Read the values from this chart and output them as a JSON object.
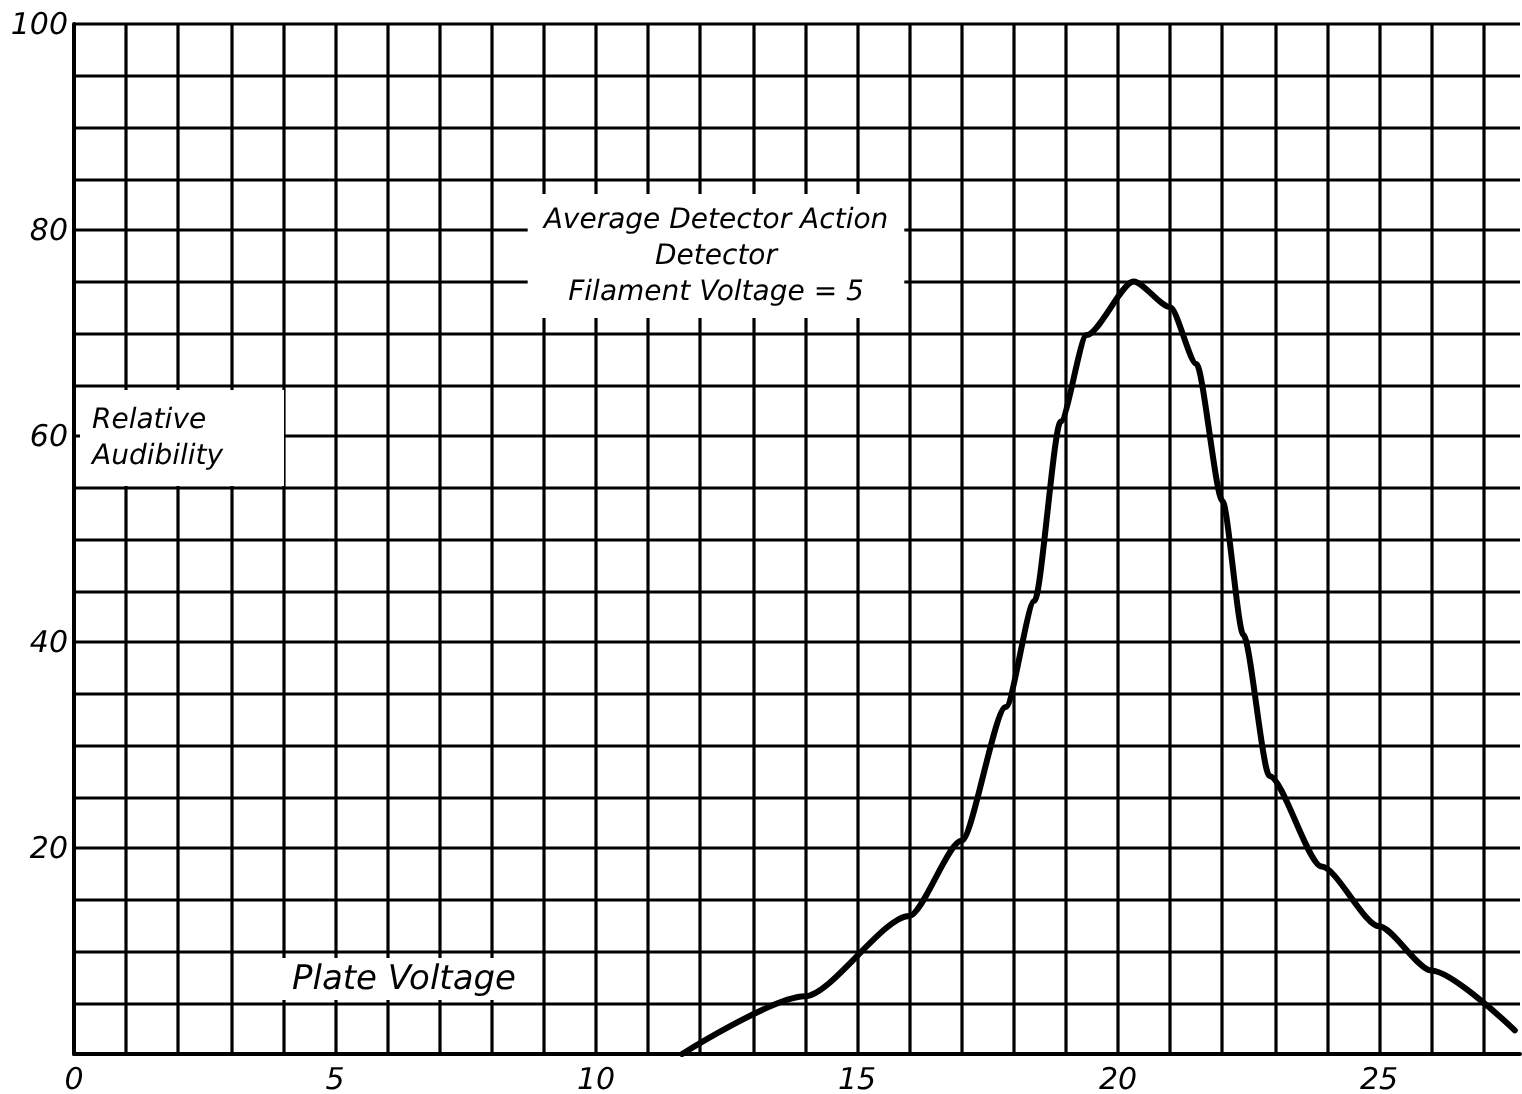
{
  "chart_data": {
    "type": "line",
    "title": "Average Detector Action",
    "subtitle": "Detector\nFilament Voltage = 5",
    "xlabel": "Plate Voltage",
    "ylabel": "Relative Audibility",
    "series": [
      {
        "color": "#000000",
        "x": [
          11.65,
          14.0,
          16.0,
          17.0,
          17.85,
          18.4,
          18.9,
          19.4,
          20.3,
          21.0,
          21.5,
          22.0,
          22.4,
          22.9,
          23.9,
          25.0,
          26.0,
          27.6
        ],
        "values": [
          0,
          5.6,
          13.4,
          20.7,
          33.7,
          44,
          61.4,
          69.8,
          75,
          72.5,
          67,
          53.7,
          40.7,
          27,
          18.2,
          12.4,
          8.1,
          2.3
        ]
      }
    ],
    "xlim": [
      0,
      27.7
    ],
    "xticks": [
      0,
      {
        "value": 1,
        "label": null
      },
      {
        "value": 2,
        "label": null
      },
      {
        "value": 3,
        "label": null
      },
      {
        "value": 4,
        "label": null
      },
      5,
      {
        "value": 6,
        "label": null
      },
      {
        "value": 7,
        "label": null
      },
      {
        "value": 8,
        "label": null
      },
      {
        "value": 9,
        "label": null
      },
      10,
      {
        "value": 11,
        "label": null
      },
      {
        "value": 12,
        "label": null
      },
      {
        "value": 13,
        "label": null
      },
      {
        "value": 14,
        "label": null
      },
      15,
      {
        "value": 16,
        "label": null
      },
      {
        "value": 17,
        "label": null
      },
      {
        "value": 18,
        "label": null
      },
      {
        "value": 19,
        "label": null
      },
      20,
      {
        "value": 21,
        "label": null
      },
      {
        "value": 22,
        "label": null
      },
      {
        "value": 23,
        "label": null
      },
      {
        "value": 24,
        "label": null
      },
      25,
      {
        "value": 26,
        "label": null
      },
      {
        "value": 27,
        "label": null
      }
    ],
    "ylim": [
      0,
      100
    ],
    "yticks": [
      {
        "value": 0,
        "label": null
      },
      {
        "value": 5,
        "label": null
      },
      {
        "value": 10,
        "label": null
      },
      {
        "value": 15,
        "label": null
      },
      20,
      {
        "value": 25,
        "label": null
      },
      {
        "value": 30,
        "label": null
      },
      {
        "value": 35,
        "label": null
      },
      40,
      {
        "value": 45,
        "label": null
      },
      {
        "value": 50,
        "label": null
      },
      {
        "value": 55,
        "label": null
      },
      60,
      {
        "value": 65,
        "label": null
      },
      {
        "value": 70,
        "label": null
      },
      {
        "value": 75,
        "label": null
      },
      80,
      {
        "value": 85,
        "label": null
      },
      {
        "value": 90,
        "label": null
      },
      {
        "value": 95,
        "label": null
      },
      100
    ],
    "grid": true,
    "marker": "none",
    "line_style": "solid"
  }
}
